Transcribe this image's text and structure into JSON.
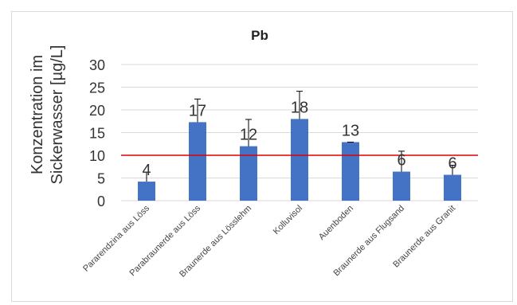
{
  "chart_data": {
    "type": "bar",
    "title": "Pb",
    "ylabel": "Konzentration im Sickerwasser [µg/L]",
    "xlabel": "",
    "ylim": [
      0,
      30
    ],
    "yticks": [
      "0",
      "5",
      "10",
      "15",
      "20",
      "25",
      "30"
    ],
    "grid": true,
    "legend": "none",
    "categories": [
      "Pararendzina aus Löss",
      "Parabraunerde aus Löss",
      "Braunerde aus Lösslehm",
      "Kolluvisol",
      "Auenboden",
      "Braunerde aus Flugsand",
      "Braunerde aus Granit"
    ],
    "values": [
      4.2,
      17.3,
      12.0,
      18.0,
      12.9,
      6.4,
      5.7
    ],
    "error_upper": [
      6.3,
      22.4,
      17.9,
      24.1,
      12.9,
      10.9,
      7.8
    ],
    "data_labels": [
      "4",
      "17",
      "12",
      "18",
      "13",
      "6",
      "6"
    ],
    "reference_line": {
      "value": 10,
      "color": "#e00000"
    },
    "bar_color": "#4472c4",
    "error_color": "#000000",
    "grid_color": "#d9d9d9"
  }
}
